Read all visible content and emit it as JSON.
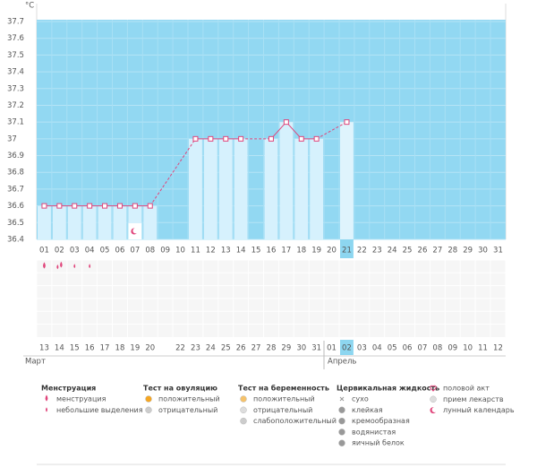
{
  "chart_data": {
    "type": "line",
    "y_unit": "°C",
    "ylim": [
      36.4,
      37.7
    ],
    "yticks": [
      36.4,
      36.5,
      36.6,
      36.7,
      36.8,
      36.9,
      37,
      37.1,
      37.2,
      37.3,
      37.4,
      37.5,
      37.6,
      37.7
    ],
    "categories": [
      "01",
      "02",
      "03",
      "04",
      "05",
      "06",
      "07",
      "08",
      "09",
      "10",
      "11",
      "12",
      "13",
      "14",
      "15",
      "16",
      "17",
      "18",
      "19",
      "20",
      "21",
      "22",
      "23",
      "24",
      "25",
      "26",
      "27",
      "28",
      "29",
      "30",
      "31"
    ],
    "series": [
      {
        "color": "#e0457b",
        "values": [
          36.6,
          36.6,
          36.6,
          36.6,
          36.6,
          36.6,
          36.6,
          36.6,
          null,
          null,
          37,
          37,
          37,
          37,
          null,
          37,
          37.1,
          37,
          37,
          null,
          37.1,
          null,
          null,
          null,
          null,
          null,
          null,
          null,
          null,
          null,
          null
        ]
      }
    ],
    "selected_index": 20,
    "calendar_dates": [
      {
        "label": "13"
      },
      {
        "label": "14"
      },
      {
        "label": "15"
      },
      {
        "label": "16"
      },
      {
        "label": "17",
        "weekend": true
      },
      {
        "label": "18",
        "weekend": true
      },
      {
        "label": "19"
      },
      {
        "label": "20"
      },
      null,
      {
        "label": "22"
      },
      {
        "label": "23"
      },
      {
        "label": "24",
        "weekend": true
      },
      {
        "label": "25",
        "weekend": true
      },
      {
        "label": "26"
      },
      {
        "label": "27"
      },
      {
        "label": "28"
      },
      {
        "label": "29"
      },
      {
        "label": "30"
      },
      {
        "label": "31",
        "weekend": true
      },
      {
        "label": "01",
        "weekend": true
      },
      {
        "label": "02"
      },
      {
        "label": "03"
      },
      {
        "label": "04"
      },
      {
        "label": "05"
      },
      {
        "label": "06"
      },
      {
        "label": "07",
        "weekend": true
      },
      {
        "label": "08",
        "weekend": true
      },
      {
        "label": "09"
      },
      {
        "label": "10"
      },
      {
        "label": "11"
      },
      {
        "label": "12"
      }
    ],
    "months": [
      "Март",
      "Апрель"
    ],
    "legend": [
      {
        "title": "Менструация",
        "items": [
          "менструация",
          "небольшие выделения"
        ]
      },
      {
        "title": "Тест на овуляцию",
        "items": [
          "положительный",
          "отрицательный"
        ]
      },
      {
        "title": "Тест на беременность",
        "items": [
          "положительный",
          "отрицательный",
          "слабоположительный"
        ]
      },
      {
        "title": "Цервикальная жидкость",
        "items": [
          "сухо",
          "клейкая",
          "кремообразная",
          "водянистая",
          "яичный белок"
        ]
      },
      {
        "items": [
          "половой акт",
          "прием лекарств",
          "лунный календарь"
        ]
      }
    ]
  }
}
